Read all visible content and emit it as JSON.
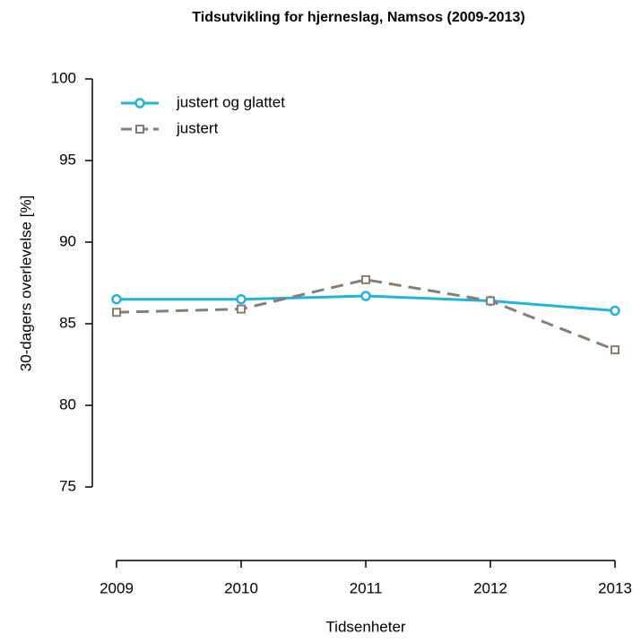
{
  "chart_data": {
    "type": "line",
    "title": "Tidsutvikling for hjerneslag, Namsos (2009-2013)",
    "x_label": "Tidsenheter",
    "y_label": "30-dagers overlevelse [%]",
    "x": [
      2009,
      2010,
      2011,
      2012,
      2013
    ],
    "xlim": [
      2009,
      2013
    ],
    "xticks": [
      2009,
      2010,
      2011,
      2012,
      2013
    ],
    "ylim": [
      75,
      100
    ],
    "yticks": [
      75,
      80,
      85,
      90,
      95,
      100
    ],
    "legend": "top-left",
    "series": [
      {
        "name": "justert og glattet",
        "color": "#1fb3de",
        "marker": "circle",
        "linestyle": "solid",
        "values": [
          86.5,
          86.5,
          86.7,
          86.4,
          85.8
        ]
      },
      {
        "name": "justert",
        "color": "#8c7d72",
        "marker": "square",
        "linestyle": "dashed",
        "values": [
          85.7,
          85.9,
          87.7,
          86.4,
          83.4
        ]
      }
    ]
  }
}
